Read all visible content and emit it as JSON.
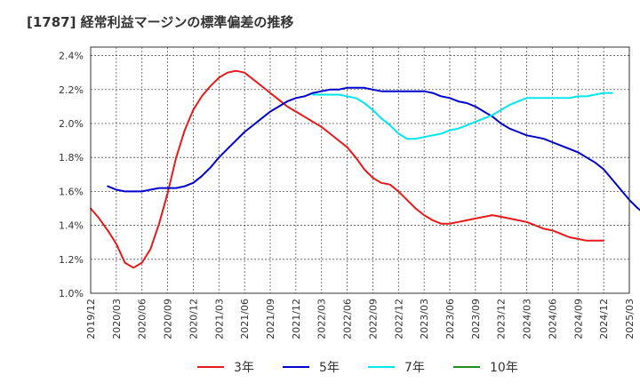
{
  "chart_data": {
    "type": "line",
    "title": "[1787]  経常利益マージンの標準偏差の推移",
    "xlabel": "",
    "ylabel": "",
    "ylim": [
      0.01,
      0.0245
    ],
    "y_ticks": [
      "1.0%",
      "1.2%",
      "1.4%",
      "1.6%",
      "1.8%",
      "2.0%",
      "2.2%",
      "2.4%"
    ],
    "x_ticks": [
      "2019/12",
      "2020/03",
      "2020/06",
      "2020/09",
      "2020/12",
      "2021/03",
      "2021/06",
      "2021/09",
      "2021/12",
      "2022/03",
      "2022/06",
      "2022/09",
      "2022/12",
      "2023/03",
      "2023/06",
      "2023/09",
      "2023/12",
      "2024/03",
      "2024/06",
      "2024/09",
      "2024/12",
      "2025/03"
    ],
    "grid": true,
    "legend_position": "bottom",
    "series": [
      {
        "name": "3年",
        "color": "#e41a1c",
        "x_start": "2019/12",
        "values": [
          0.015,
          0.0144,
          0.0137,
          0.0129,
          0.0118,
          0.0115,
          0.0118,
          0.0126,
          0.0141,
          0.0159,
          0.018,
          0.0196,
          0.0208,
          0.0216,
          0.0222,
          0.0227,
          0.023,
          0.0231,
          0.023,
          0.0226,
          0.0222,
          0.0218,
          0.0214,
          0.021,
          0.0207,
          0.0204,
          0.0201,
          0.0198,
          0.0194,
          0.019,
          0.0186,
          0.018,
          0.0173,
          0.0168,
          0.0165,
          0.0164,
          0.016,
          0.0155,
          0.015,
          0.0146,
          0.0143,
          0.0141,
          0.0141,
          0.0142,
          0.0143,
          0.0144,
          0.0145,
          0.0146,
          0.0145,
          0.0144,
          0.0143,
          0.0142,
          0.014,
          0.0138,
          0.0137,
          0.0135,
          0.0133,
          0.0132,
          0.0131,
          0.0131,
          0.0131
        ]
      },
      {
        "name": "5年",
        "color": "#0000cc",
        "x_start": "2020/02",
        "values": [
          0.0163,
          0.0161,
          0.016,
          0.016,
          0.016,
          0.0161,
          0.0162,
          0.0162,
          0.0162,
          0.0163,
          0.0165,
          0.0169,
          0.0174,
          0.018,
          0.0185,
          0.019,
          0.0195,
          0.0199,
          0.0203,
          0.0207,
          0.021,
          0.0213,
          0.0215,
          0.0216,
          0.0218,
          0.0219,
          0.022,
          0.022,
          0.0221,
          0.0221,
          0.0221,
          0.022,
          0.0219,
          0.0219,
          0.0219,
          0.0219,
          0.0219,
          0.0219,
          0.0218,
          0.0216,
          0.0215,
          0.0213,
          0.0212,
          0.021,
          0.0207,
          0.0204,
          0.02,
          0.0197,
          0.0195,
          0.0193,
          0.0192,
          0.0191,
          0.0189,
          0.0187,
          0.0185,
          0.0183,
          0.018,
          0.0177,
          0.0173,
          0.0167,
          0.0161,
          0.0155,
          0.015,
          0.0146
        ]
      },
      {
        "name": "7年",
        "color": "#00e5ee",
        "x_start": "2022/02",
        "values": [
          0.0217,
          0.0217,
          0.0217,
          0.0217,
          0.0216,
          0.0215,
          0.0212,
          0.0208,
          0.0203,
          0.0199,
          0.0194,
          0.0191,
          0.0191,
          0.0192,
          0.0193,
          0.0194,
          0.0196,
          0.0197,
          0.0199,
          0.0201,
          0.0203,
          0.0205,
          0.0208,
          0.0211,
          0.0213,
          0.0215,
          0.0215,
          0.0215,
          0.0215,
          0.0215,
          0.0215,
          0.0216,
          0.0216,
          0.0217,
          0.0218,
          0.0218
        ]
      },
      {
        "name": "10年",
        "color": "#228b22",
        "x_start": "2024/12",
        "values": []
      }
    ]
  }
}
